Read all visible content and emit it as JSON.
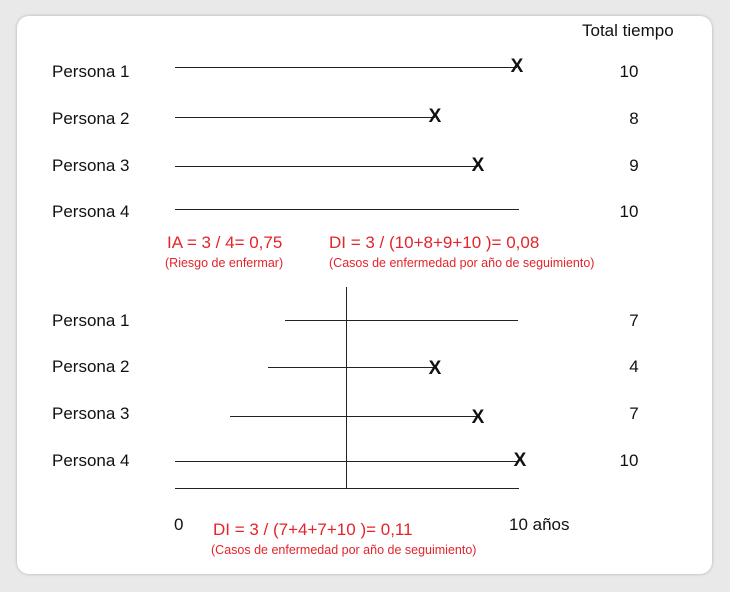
{
  "header": {
    "total_label": "Total tiempo"
  },
  "top": {
    "rows": [
      {
        "label": "Persona 1",
        "total": "10",
        "event": true
      },
      {
        "label": "Persona 2",
        "total": "8",
        "event": true
      },
      {
        "label": "Persona 3",
        "total": "9",
        "event": true
      },
      {
        "label": "Persona 4",
        "total": "10",
        "event": false
      }
    ],
    "event_mark": "X",
    "ia_formula": "IA = 3 / 4= 0,75",
    "ia_note": "(Riesgo de enfermar)",
    "di_formula": "DI = 3 / (10+8+9+10 )= 0,08",
    "di_note": "(Casos de enfermedad por año de seguimiento)"
  },
  "bottom": {
    "rows": [
      {
        "label": "Persona 1",
        "total": "7",
        "event": false
      },
      {
        "label": "Persona 2",
        "total": "4",
        "event": true
      },
      {
        "label": "Persona 3",
        "total": "7",
        "event": true
      },
      {
        "label": "Persona 4",
        "total": "10",
        "event": true
      }
    ],
    "axis_start": "0",
    "axis_end": "10 años",
    "di_formula": "DI = 3 / (7+4+7+10 )= 0,11",
    "di_note": "(Casos de enfermedad por año de seguimiento)"
  },
  "colors": {
    "accent": "#e3242b",
    "line": "#222222",
    "card": "#ffffff"
  }
}
